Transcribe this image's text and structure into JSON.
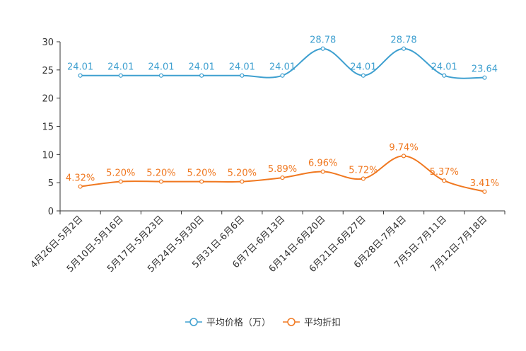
{
  "chart_data": {
    "type": "line",
    "title": "",
    "xlabel": "",
    "ylabel": "",
    "ylim": [
      0,
      30
    ],
    "yticks": [
      "0",
      "5",
      "10",
      "15",
      "20",
      "25",
      "30"
    ],
    "categories": [
      "4月26日-5月2日",
      "5月10日-5月16日",
      "5月17日-5月23日",
      "5月24日-5月30日",
      "5月31日-6月6日",
      "6月7日-6月13日",
      "6月14日-6月20日",
      "6月21日-6月27日",
      "6月28日-7月4日",
      "7月5日-7月11日",
      "7月12日-7月18日"
    ],
    "series": [
      {
        "name": "平均价格（万）",
        "color": "#3fa0d0",
        "values": [
          24.01,
          24.01,
          24.01,
          24.01,
          24.01,
          24.01,
          28.78,
          24.01,
          28.78,
          24.01,
          23.64
        ],
        "labels": [
          "24.01",
          "24.01",
          "24.01",
          "24.01",
          "24.01",
          "24.01",
          "28.78",
          "24.01",
          "28.78",
          "24.01",
          "23.64"
        ]
      },
      {
        "name": "平均折扣",
        "color": "#f07820",
        "values": [
          4.32,
          5.2,
          5.2,
          5.2,
          5.2,
          5.89,
          6.96,
          5.72,
          9.74,
          5.37,
          3.41
        ],
        "labels": [
          "4.32%",
          "5.20%",
          "5.20%",
          "5.20%",
          "5.20%",
          "5.89%",
          "6.96%",
          "5.72%",
          "9.74%",
          "5.37%",
          "3.41%"
        ]
      }
    ],
    "legend": "bottom-center",
    "grid": false
  }
}
